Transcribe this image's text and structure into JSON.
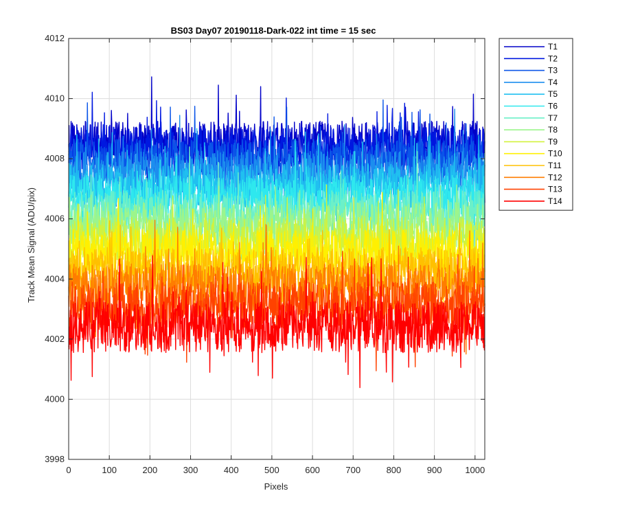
{
  "chart_data": {
    "type": "line",
    "title": "BS03 Day07 20190118-Dark-022 int time = 15 sec",
    "xlabel": "Pixels",
    "ylabel": "Track Mean Signal (ADU/pix)",
    "xlim": [
      0,
      1024
    ],
    "ylim": [
      3998,
      4012
    ],
    "x_ticks": [
      0,
      100,
      200,
      300,
      400,
      500,
      600,
      700,
      800,
      900,
      1000
    ],
    "y_ticks": [
      3998,
      4000,
      4002,
      4004,
      4006,
      4008,
      4010,
      4012
    ],
    "grid": true,
    "legend_position": "outside-top-right",
    "n_points_per_series": 1024,
    "series": [
      {
        "name": "T1",
        "color": "#0000C8",
        "mean": 4008.5,
        "spread": 0.75
      },
      {
        "name": "T2",
        "color": "#0018E0",
        "mean": 4008.3,
        "spread": 0.75
      },
      {
        "name": "T3",
        "color": "#0A55E8",
        "mean": 4007.9,
        "spread": 0.75
      },
      {
        "name": "T4",
        "color": "#1C8EEE",
        "mean": 4007.5,
        "spread": 0.75
      },
      {
        "name": "T5",
        "color": "#20C0F0",
        "mean": 4007.1,
        "spread": 0.75
      },
      {
        "name": "T6",
        "color": "#2EE8EE",
        "mean": 4006.7,
        "spread": 0.75
      },
      {
        "name": "T7",
        "color": "#6CF0C8",
        "mean": 4006.2,
        "spread": 0.75
      },
      {
        "name": "T8",
        "color": "#9CF58C",
        "mean": 4005.8,
        "spread": 0.75
      },
      {
        "name": "T9",
        "color": "#D2F23C",
        "mean": 4005.3,
        "spread": 0.75
      },
      {
        "name": "T10",
        "color": "#FFF000",
        "mean": 4004.9,
        "spread": 0.75
      },
      {
        "name": "T11",
        "color": "#FFC000",
        "mean": 4004.3,
        "spread": 0.75
      },
      {
        "name": "T12",
        "color": "#FF7D00",
        "mean": 4003.7,
        "spread": 0.8
      },
      {
        "name": "T13",
        "color": "#FF4200",
        "mean": 4003.1,
        "spread": 0.8
      },
      {
        "name": "T14",
        "color": "#FF0000",
        "mean": 4002.4,
        "spread": 0.85
      }
    ]
  }
}
